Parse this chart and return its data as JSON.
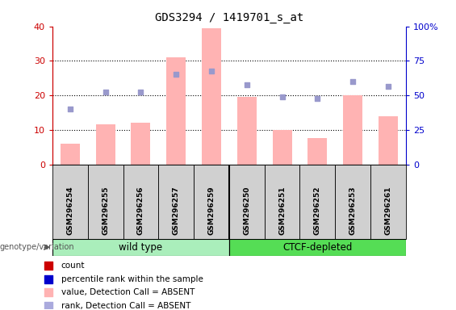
{
  "title": "GDS3294 / 1419701_s_at",
  "samples": [
    "GSM296254",
    "GSM296255",
    "GSM296256",
    "GSM296257",
    "GSM296259",
    "GSM296250",
    "GSM296251",
    "GSM296252",
    "GSM296253",
    "GSM296261"
  ],
  "bar_values": [
    6,
    11.5,
    12,
    31,
    39.5,
    19.5,
    10,
    7.5,
    20,
    14
  ],
  "dot_values": [
    16,
    21,
    21,
    26,
    27,
    23,
    19.5,
    19,
    24,
    22.5
  ],
  "ylim_left": [
    0,
    40
  ],
  "yticks_left": [
    0,
    10,
    20,
    30,
    40
  ],
  "ytick_labels_left": [
    "0",
    "10",
    "20",
    "30",
    "40"
  ],
  "ytick_labels_right": [
    "0",
    "25",
    "50",
    "75",
    "100%"
  ],
  "bar_color": "#ffb3b3",
  "dot_color": "#9999cc",
  "legend_items": [
    {
      "color": "#cc0000",
      "label": "count"
    },
    {
      "color": "#0000cc",
      "label": "percentile rank within the sample"
    },
    {
      "color": "#ffb3b3",
      "label": "value, Detection Call = ABSENT"
    },
    {
      "color": "#aaaadd",
      "label": "rank, Detection Call = ABSENT"
    }
  ],
  "group1_label": "wild type",
  "group2_label": "CTCF-depleted",
  "group1_color": "#aaeebb",
  "group2_color": "#55dd55",
  "genotype_label": "genotype/variation",
  "left_axis_color": "#cc0000",
  "right_axis_color": "#0000cc",
  "title_fontsize": 10,
  "tick_fontsize": 8,
  "sample_fontsize": 6.5,
  "legend_fontsize": 7.5
}
